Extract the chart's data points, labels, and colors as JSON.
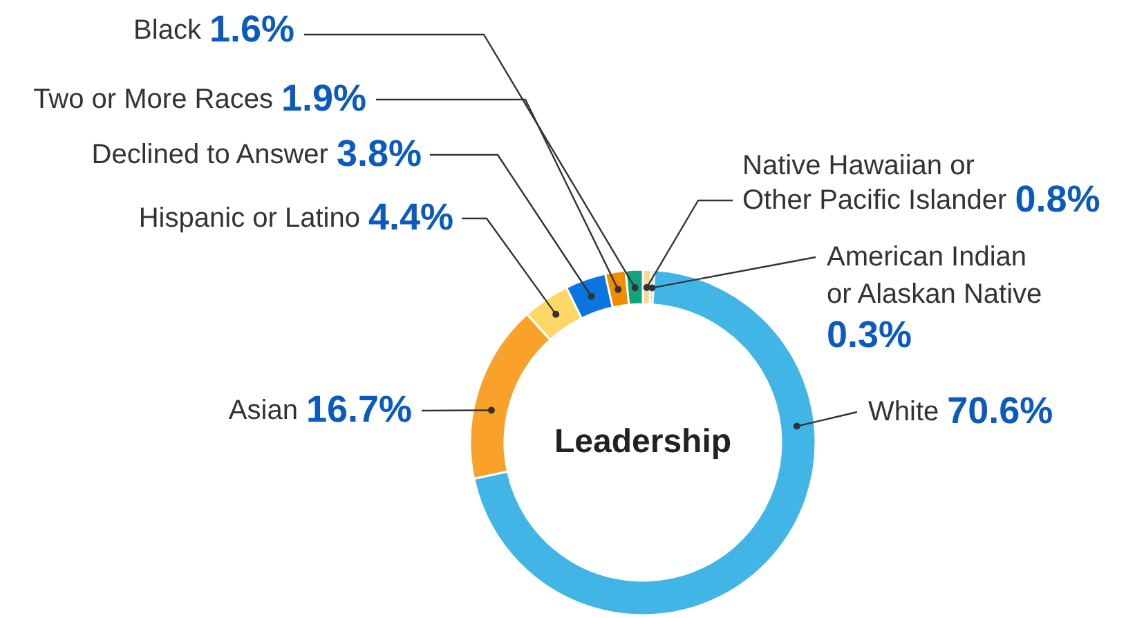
{
  "chart_data": {
    "type": "donut",
    "title": "Leadership",
    "categories": [
      "Native Hawaiian or Other Pacific Islander",
      "American Indian or Alaskan Native",
      "White",
      "Asian",
      "Hispanic or Latino",
      "Declined to Answer",
      "Two or More Races",
      "Black"
    ],
    "values": [
      0.8,
      0.3,
      70.6,
      16.7,
      4.4,
      3.8,
      1.9,
      1.6
    ],
    "value_labels": [
      "0.8%",
      "0.3%",
      "70.6%",
      "16.7%",
      "4.4%",
      "3.8%",
      "1.9%",
      "1.6%"
    ],
    "colors": [
      "#f5dc8c",
      "#a9c4ec",
      "#41b6e6",
      "#f9a12a",
      "#fdd766",
      "#0a74e0",
      "#f08c00",
      "#12a37e"
    ]
  }
}
